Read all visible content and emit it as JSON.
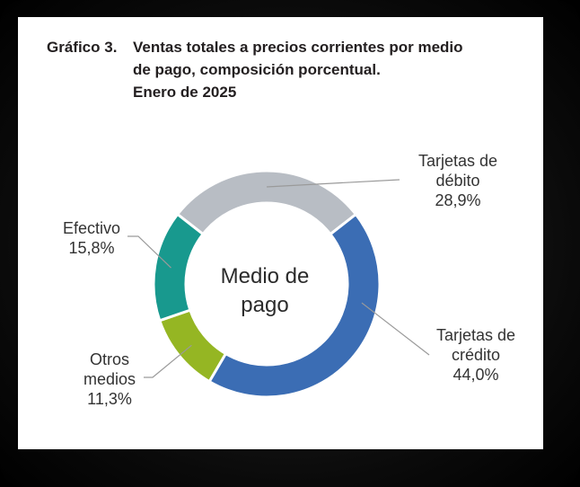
{
  "title": {
    "number": "Gráfico 3.",
    "text": "Ventas totales a precios corrientes por medio\nde pago, composición porcentual.\nEnero de 2025"
  },
  "chart_data": {
    "type": "pie",
    "variant": "donut",
    "center_label": "Medio de pago",
    "slices": [
      {
        "name": "Tarjetas de débito",
        "value": 28.9,
        "label_line1": "Tarjetas de",
        "label_line2": "débito",
        "value_label": "28,9%",
        "color": "#b8bdc4"
      },
      {
        "name": "Tarjetas de crédito",
        "value": 44.0,
        "label_line1": "Tarjetas de",
        "label_line2": "crédito",
        "value_label": "44,0%",
        "color": "#3b6db4"
      },
      {
        "name": "Otros medios",
        "value": 11.3,
        "label_line1": "Otros",
        "label_line2": "medios",
        "value_label": "11,3%",
        "color": "#95b623"
      },
      {
        "name": "Efectivo",
        "value": 15.8,
        "label_line1": "Efectivo",
        "label_line2": "",
        "value_label": "15,8%",
        "color": "#18998e"
      }
    ]
  }
}
